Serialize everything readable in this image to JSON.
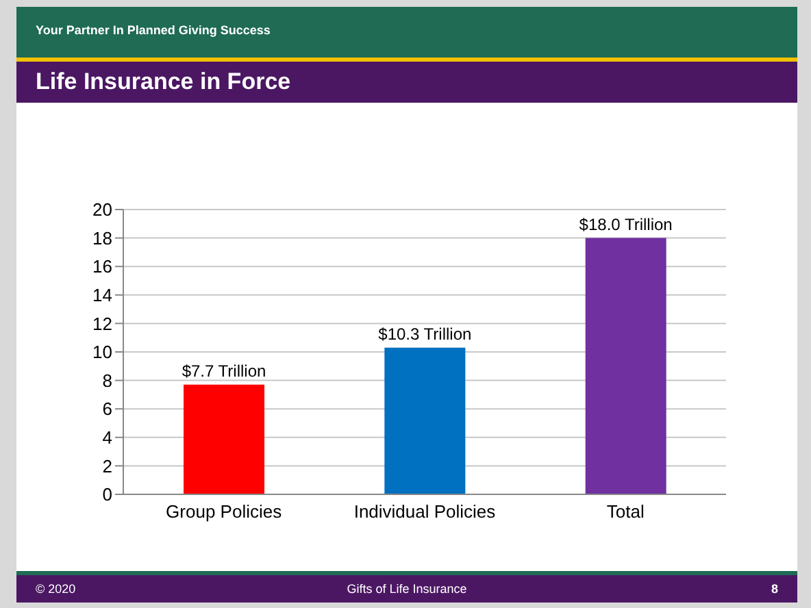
{
  "chart_data": {
    "type": "bar",
    "title": "Life Insurance in Force",
    "categories": [
      "Group Policies",
      "Individual Policies",
      "Total"
    ],
    "values": [
      7.7,
      10.3,
      18.0
    ],
    "colors": [
      "#ff0000",
      "#0070c0",
      "#7030a0"
    ],
    "value_labels": [
      "$7.7 Trillion",
      "$10.3 Trillion",
      "$18.0 Trillion"
    ],
    "ylim": [
      0,
      20
    ],
    "yticks": [
      0,
      2,
      4,
      6,
      8,
      10,
      12,
      14,
      16,
      18,
      20
    ],
    "grid": "y",
    "annotations": [
      "Your Partner In Planned Giving Success",
      "© 2020",
      "Gifts of Life Insurance",
      "8"
    ]
  }
}
